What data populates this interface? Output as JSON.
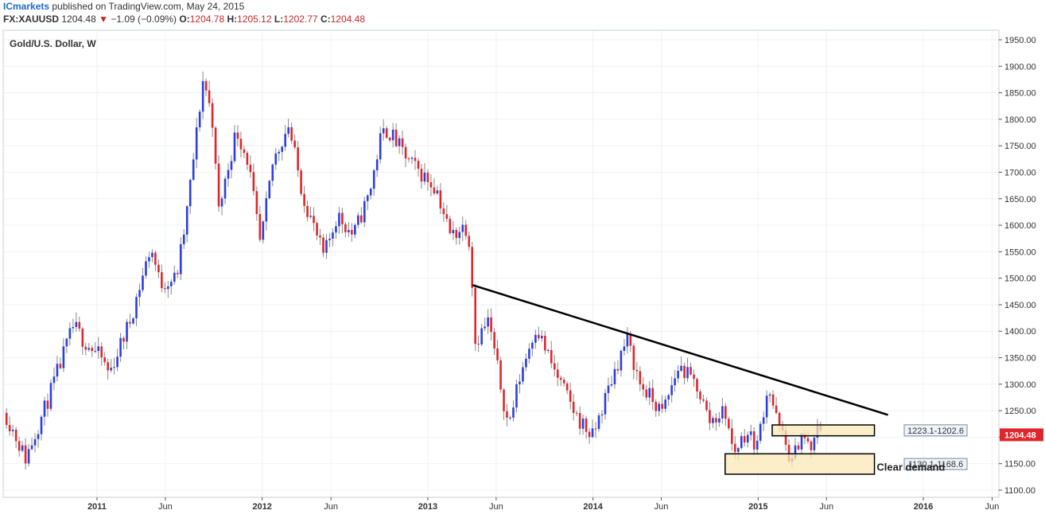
{
  "header": {
    "brand": "ICmarkets",
    "published": "published on TradingView.com, May 24, 2015",
    "symbol": "FX:XAUUSD",
    "last": "1204.48",
    "change": "−1.09 (−0.09%)",
    "o_label": "O:",
    "o": "1204.78",
    "h_label": "H:",
    "h": "1205.12",
    "l_label": "L:",
    "l": "1202.77",
    "c_label": "C:",
    "c": "1204.48"
  },
  "colors": {
    "up": "#2b3ee0",
    "down": "#e0262c",
    "zone_fill": "#fbe8b6",
    "zone_border": "#000000",
    "price_tag": "#e0262c",
    "trendline": "#000000"
  },
  "chart_data": {
    "type": "candlestick",
    "title": "Gold/U.S. Dollar, W",
    "ylim": [
      1100,
      1950
    ],
    "y_ticks": [
      1100,
      1150,
      1200,
      1250,
      1300,
      1350,
      1400,
      1450,
      1500,
      1550,
      1600,
      1650,
      1700,
      1750,
      1800,
      1850,
      1900,
      1950
    ],
    "x_ticks": [
      {
        "label": "2011",
        "date": "2011-01-01"
      },
      {
        "label": "Jun",
        "date": "2011-06-01"
      },
      {
        "label": "2012",
        "date": "2012-01-01"
      },
      {
        "label": "Jun",
        "date": "2012-06-01"
      },
      {
        "label": "2013",
        "date": "2013-01-01"
      },
      {
        "label": "Jun",
        "date": "2013-06-01"
      },
      {
        "label": "2014",
        "date": "2014-01-01"
      },
      {
        "label": "Jun",
        "date": "2014-06-01"
      },
      {
        "label": "2015",
        "date": "2015-01-01"
      },
      {
        "label": "Jun",
        "date": "2015-06-01"
      },
      {
        "label": "2016",
        "date": "2016-01-01"
      },
      {
        "label": "Jun",
        "date": "2016-06-01"
      }
    ],
    "last_price": "1204.48",
    "path": [
      [
        "2010-06-15",
        1240
      ],
      [
        "2010-07-27",
        1160
      ],
      [
        "2010-09-10",
        1260
      ],
      [
        "2010-11-10",
        1410
      ],
      [
        "2010-12-05",
        1380
      ],
      [
        "2011-01-10",
        1350
      ],
      [
        "2011-01-28",
        1320
      ],
      [
        "2011-03-15",
        1420
      ],
      [
        "2011-04-30",
        1560
      ],
      [
        "2011-05-20",
        1490
      ],
      [
        "2011-06-25",
        1500
      ],
      [
        "2011-07-15",
        1600
      ],
      [
        "2011-08-10",
        1780
      ],
      [
        "2011-08-24",
        1880
      ],
      [
        "2011-09-15",
        1790
      ],
      [
        "2011-09-25",
        1620
      ],
      [
        "2011-11-05",
        1780
      ],
      [
        "2011-12-01",
        1720
      ],
      [
        "2011-12-28",
        1560
      ],
      [
        "2012-01-25",
        1720
      ],
      [
        "2012-02-28",
        1790
      ],
      [
        "2012-03-30",
        1660
      ],
      [
        "2012-05-16",
        1540
      ],
      [
        "2012-06-15",
        1620
      ],
      [
        "2012-07-20",
        1580
      ],
      [
        "2012-08-25",
        1660
      ],
      [
        "2012-09-20",
        1770
      ],
      [
        "2012-10-05",
        1780
      ],
      [
        "2012-11-20",
        1720
      ],
      [
        "2013-01-20",
        1670
      ],
      [
        "2013-02-20",
        1580
      ],
      [
        "2013-03-25",
        1600
      ],
      [
        "2013-04-05",
        1560
      ],
      [
        "2013-04-16",
        1380
      ],
      [
        "2013-05-15",
        1420
      ],
      [
        "2013-06-28",
        1220
      ],
      [
        "2013-07-25",
        1320
      ],
      [
        "2013-08-28",
        1410
      ],
      [
        "2013-10-05",
        1330
      ],
      [
        "2013-11-25",
        1240
      ],
      [
        "2013-12-31",
        1200
      ],
      [
        "2014-02-15",
        1320
      ],
      [
        "2014-03-17",
        1385
      ],
      [
        "2014-04-15",
        1300
      ],
      [
        "2014-06-03",
        1245
      ],
      [
        "2014-07-10",
        1335
      ],
      [
        "2014-08-20",
        1295
      ],
      [
        "2014-09-15",
        1230
      ],
      [
        "2014-10-20",
        1250
      ],
      [
        "2014-11-07",
        1170
      ],
      [
        "2014-12-05",
        1210
      ],
      [
        "2014-12-30",
        1185
      ],
      [
        "2015-01-23",
        1300
      ],
      [
        "2015-02-10",
        1235
      ],
      [
        "2015-03-17",
        1150
      ],
      [
        "2015-04-06",
        1210
      ],
      [
        "2015-04-20",
        1185
      ],
      [
        "2015-05-01",
        1175
      ],
      [
        "2015-05-15",
        1225
      ],
      [
        "2015-05-22",
        1204.48
      ]
    ],
    "trendline": [
      [
        "2013-04-10",
        1487
      ],
      [
        "2015-10-15",
        1242
      ]
    ],
    "zones": [
      {
        "label": "1223.1-1202.6",
        "top": 1223.1,
        "bottom": 1202.6,
        "start": "2015-02-01",
        "end": "2015-09-15"
      },
      {
        "label": "1130.1-1168.6",
        "top": 1168.6,
        "bottom": 1130.1,
        "start": "2014-10-20",
        "end": "2015-09-15"
      }
    ],
    "annotations": [
      {
        "text": "Clear demand",
        "date": "2015-09-20",
        "y": 1143
      }
    ]
  }
}
